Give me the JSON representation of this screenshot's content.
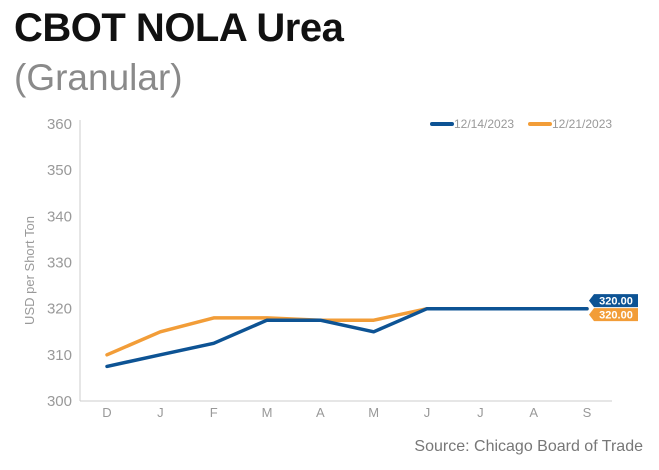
{
  "header": {
    "title": "CBOT NOLA Urea",
    "subtitle": "(Granular)"
  },
  "footer": {
    "source": "Source: Chicago Board of Trade"
  },
  "colors": {
    "series_1": "#0d5394",
    "series_2": "#f29d38",
    "axis_text": "#999999",
    "axis_line": "#cccccc"
  },
  "chart_data": {
    "type": "line",
    "title": "CBOT NOLA Urea",
    "subtitle": "(Granular)",
    "xlabel": "",
    "ylabel": "USD per Short Ton",
    "categories": [
      "D",
      "J",
      "F",
      "M",
      "A",
      "M",
      "J",
      "J",
      "A",
      "S"
    ],
    "ylim": [
      300,
      360
    ],
    "yticks": [
      300,
      310,
      320,
      330,
      340,
      350,
      360
    ],
    "grid": false,
    "legend": "top-right",
    "series": [
      {
        "name": "12/14/2023",
        "color": "#0d5394",
        "values": [
          307.5,
          310,
          312.5,
          317.5,
          317.5,
          315,
          320,
          320,
          320,
          320
        ],
        "end_label": "320.00"
      },
      {
        "name": "12/21/2023",
        "color": "#f29d38",
        "values": [
          310,
          315,
          318,
          318,
          317.5,
          317.5,
          320,
          320,
          320,
          320
        ],
        "end_label": "320.00"
      }
    ]
  }
}
